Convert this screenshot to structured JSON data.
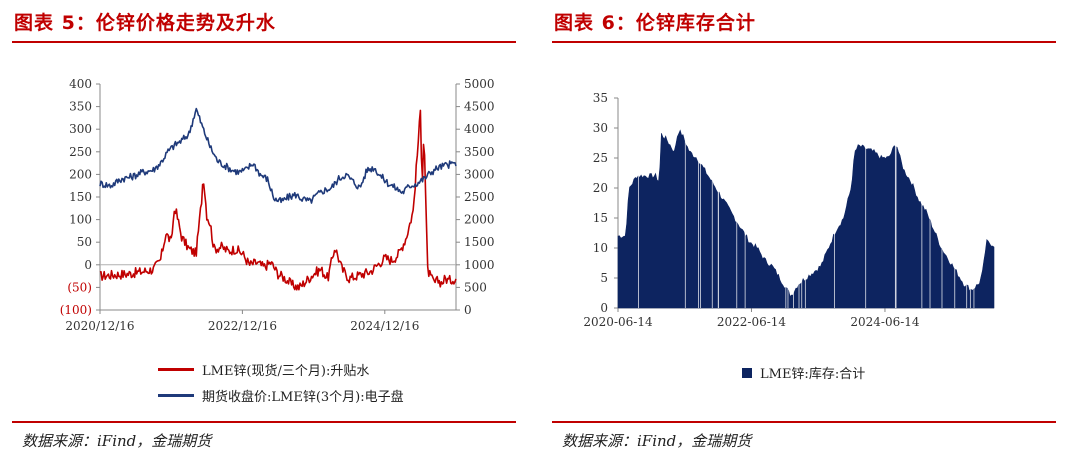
{
  "left": {
    "title": "图表 5：伦锌价格走势及升水",
    "source": "数据来源：iFind，金瑞期货",
    "chart_data": {
      "type": "line",
      "title": "伦锌价格走势及升水",
      "x_tick_labels": [
        "2020/12/16",
        "2022/12/16",
        "2024/12/16"
      ],
      "x_range": [
        "2020-12-16",
        "2025-12-31"
      ],
      "y_left": {
        "range": [
          -100,
          400
        ],
        "tick_labels": [
          "(100)",
          "(50)",
          "0",
          "50",
          "100",
          "150",
          "200",
          "250",
          "300",
          "350",
          "400"
        ]
      },
      "y_right": {
        "range": [
          0,
          5000
        ],
        "tick_labels": [
          "0",
          "500",
          "1000",
          "1500",
          "2000",
          "2500",
          "3000",
          "3500",
          "4000",
          "4500",
          "5000"
        ]
      },
      "series": [
        {
          "name": "LME锌(现货/三个月):升贴水",
          "axis": "left",
          "color": "#c00000",
          "t": [
            0.0,
            0.04,
            0.08,
            0.12,
            0.15,
            0.17,
            0.185,
            0.2,
            0.21,
            0.23,
            0.25,
            0.27,
            0.285,
            0.29,
            0.3,
            0.31,
            0.32,
            0.34,
            0.36,
            0.38,
            0.4,
            0.42,
            0.44,
            0.46,
            0.48,
            0.5,
            0.52,
            0.54,
            0.56,
            0.58,
            0.6,
            0.62,
            0.64,
            0.66,
            0.68,
            0.7,
            0.72,
            0.74,
            0.76,
            0.78,
            0.8,
            0.82,
            0.84,
            0.86,
            0.88,
            0.89,
            0.9,
            0.905,
            0.91,
            0.92,
            0.93,
            0.94,
            0.95,
            0.96,
            0.97,
            0.98,
            1.0
          ],
          "values": [
            -25,
            -22,
            -20,
            -15,
            -10,
            10,
            70,
            50,
            130,
            60,
            35,
            25,
            140,
            200,
            110,
            90,
            35,
            40,
            30,
            35,
            25,
            0,
            5,
            -5,
            5,
            -20,
            -30,
            -45,
            -50,
            -35,
            -20,
            -10,
            -30,
            40,
            -10,
            -30,
            -25,
            -20,
            -15,
            0,
            15,
            10,
            25,
            60,
            120,
            230,
            340,
            180,
            300,
            -10,
            -30,
            -40,
            -35,
            -40,
            -30,
            -35,
            -30
          ]
        },
        {
          "name": "期货收盘价:LME锌(3个月):电子盘",
          "axis": "right",
          "color": "#1f3a7a",
          "t": [
            0.0,
            0.03,
            0.06,
            0.09,
            0.12,
            0.15,
            0.17,
            0.19,
            0.21,
            0.23,
            0.25,
            0.27,
            0.29,
            0.31,
            0.33,
            0.35,
            0.37,
            0.39,
            0.41,
            0.43,
            0.45,
            0.47,
            0.49,
            0.51,
            0.53,
            0.55,
            0.57,
            0.59,
            0.61,
            0.63,
            0.65,
            0.67,
            0.69,
            0.71,
            0.73,
            0.75,
            0.77,
            0.79,
            0.81,
            0.83,
            0.85,
            0.87,
            0.89,
            0.91,
            0.93,
            0.95,
            0.97,
            1.0
          ],
          "values": [
            2800,
            2750,
            2900,
            2950,
            3050,
            3100,
            3250,
            3500,
            3650,
            3750,
            3900,
            4450,
            4000,
            3600,
            3300,
            3200,
            3100,
            3050,
            3100,
            3250,
            3000,
            2900,
            2450,
            2400,
            2500,
            2550,
            2450,
            2400,
            2550,
            2650,
            2700,
            2900,
            3000,
            2850,
            2700,
            3100,
            3150,
            2950,
            2800,
            2700,
            2600,
            2750,
            2800,
            2900,
            3050,
            3150,
            3200,
            3250
          ]
        }
      ],
      "legend": [
        "LME锌(现货/三个月):升贴水",
        "期货收盘价:LME锌(3个月):电子盘"
      ]
    }
  },
  "right": {
    "title": "图表 6：伦锌库存合计",
    "source": "数据来源：iFind，金瑞期货",
    "chart_data": {
      "type": "area",
      "title": "伦锌库存合计",
      "x_tick_labels": [
        "2020-06-14",
        "2022-06-14",
        "2024-06-14"
      ],
      "x_range": [
        "2020-06-14",
        "2026-02-28"
      ],
      "y": {
        "range": [
          0,
          35
        ],
        "tick_labels": [
          "0",
          "5",
          "10",
          "15",
          "20",
          "25",
          "30",
          "35"
        ]
      },
      "series": [
        {
          "name": "LME锌:库存:合计",
          "color": "#0d2460",
          "t": [
            0.0,
            0.02,
            0.03,
            0.05,
            0.08,
            0.1,
            0.11,
            0.115,
            0.13,
            0.15,
            0.16,
            0.17,
            0.19,
            0.21,
            0.23,
            0.25,
            0.27,
            0.29,
            0.31,
            0.33,
            0.35,
            0.37,
            0.39,
            0.41,
            0.43,
            0.45,
            0.46,
            0.47,
            0.48,
            0.5,
            0.52,
            0.54,
            0.56,
            0.58,
            0.6,
            0.62,
            0.63,
            0.64,
            0.66,
            0.68,
            0.7,
            0.72,
            0.74,
            0.75,
            0.76,
            0.78,
            0.8,
            0.82,
            0.84,
            0.86,
            0.88,
            0.9,
            0.92,
            0.94,
            0.96,
            0.97,
            0.98,
            1.0
          ],
          "values": [
            12,
            12,
            20,
            22,
            22,
            22,
            21,
            29,
            28,
            26,
            29.5,
            29,
            26,
            25,
            23,
            21,
            19,
            17,
            15,
            13,
            11,
            10,
            8,
            7,
            5,
            3,
            2,
            3,
            4,
            5,
            6,
            7,
            10,
            13,
            15,
            20,
            26,
            27,
            26.5,
            26,
            25,
            25,
            27.5,
            25,
            23,
            21,
            18,
            16,
            13,
            10,
            8,
            6,
            4,
            3,
            4,
            6,
            11,
            10.5
          ]
        }
      ],
      "legend": [
        "LME锌:库存:合计"
      ]
    }
  }
}
